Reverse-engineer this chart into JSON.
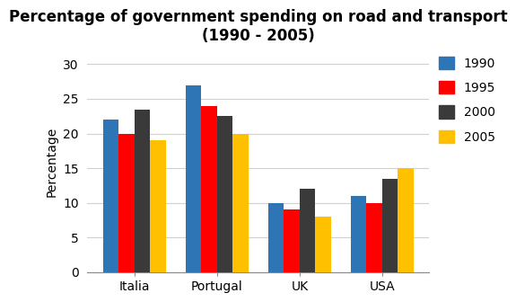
{
  "title": "Percentage of government spending on road and transport\n(1990 - 2005)",
  "categories": [
    "Italia",
    "Portugal",
    "UK",
    "USA"
  ],
  "years": [
    "1990",
    "1995",
    "2000",
    "2005"
  ],
  "values": {
    "1990": [
      22,
      27,
      10,
      11
    ],
    "1995": [
      20,
      24,
      9,
      10
    ],
    "2000": [
      23.5,
      22.5,
      12,
      13.5
    ],
    "2005": [
      19,
      20,
      8,
      15
    ]
  },
  "colors": {
    "1990": "#2e75b6",
    "1995": "#ff0000",
    "2000": "#3a3a3a",
    "2005": "#ffc000"
  },
  "ylabel": "Percentage",
  "ylim": [
    0,
    32
  ],
  "yticks": [
    0,
    5,
    10,
    15,
    20,
    25,
    30
  ],
  "bar_width": 0.19,
  "title_fontsize": 12,
  "axis_label_fontsize": 10,
  "tick_fontsize": 10,
  "legend_fontsize": 10
}
